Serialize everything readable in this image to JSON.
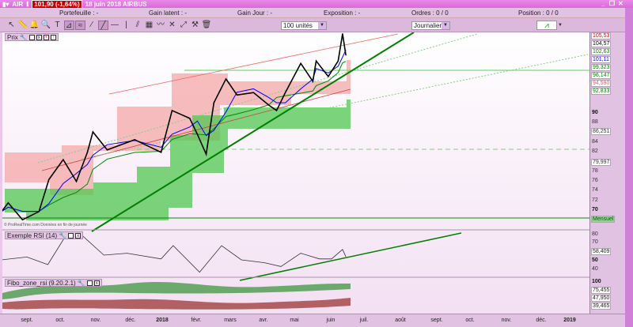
{
  "titlebar": {
    "symbol": "AIR",
    "price_change": "101,90 (-1,64%)",
    "date_name": "18 juin 2018 AIRBUS"
  },
  "infobar": {
    "portefeuille": "Portefeuille : -",
    "gain_latent": "Gain latent : -",
    "gain_jour": "Gain Jour : -",
    "exposition": "Exposition : -",
    "ordres": "Ordres : 0 / 0",
    "position": "Position : 0 / 0"
  },
  "toolbar": {
    "quantity": "100 unités",
    "period": "Journalier",
    "tools": [
      "pointer-icon",
      "ruler-icon",
      "bell-icon",
      "magnifier-icon",
      "text-icon",
      "fan-icon",
      "channel-icon",
      "segment-icon",
      "line-icon",
      "horizontal-line-icon",
      "vertical-line-icon",
      "parallel-icon",
      "fibo-icon",
      "wave-icon",
      "cross-icon",
      "trend-icon",
      "tools-icon",
      "trash-icon"
    ]
  },
  "panels": {
    "price": "Prix",
    "rsi": "Exemple RSI (14)",
    "fibo": "Fibo_zone_rsi (9.20.2.1)"
  },
  "watermark": "© ProRealTime.com Données en fin de journée",
  "colors": {
    "price": "#000000",
    "ma_fast": "#0000ff",
    "ma_mid": "#008800",
    "band_upper": "#f4a0a0",
    "cloud": "#40c040",
    "trendline": "#008000"
  },
  "price_axis": {
    "ticks": [
      "90",
      "88",
      "84",
      "82",
      "78",
      "76",
      "74",
      "72",
      "70"
    ],
    "labels": [
      {
        "v": "105,53",
        "c": "#e00000"
      },
      {
        "v": "104,57",
        "c": "#000"
      },
      {
        "v": "102,63",
        "c": "#008800"
      },
      {
        "v": "101,11",
        "c": "#0000ff"
      },
      {
        "v": "99,323",
        "c": "#008800"
      },
      {
        "v": "96,147",
        "c": "#008800"
      },
      {
        "v": "94,590",
        "c": "#e06060"
      },
      {
        "v": "92,833",
        "c": "#008800"
      },
      {
        "v": "86,251",
        "c": "#333"
      },
      {
        "v": "79,997",
        "c": "#333"
      }
    ],
    "mensuel": "Mensuel"
  },
  "rsi_axis": {
    "ticks": [
      "80",
      "70",
      "50",
      "40"
    ],
    "label": "58,409"
  },
  "fibo_axis": {
    "top": "100",
    "labels": [
      "75,455",
      "47,950",
      "39,465"
    ]
  },
  "x_axis": [
    "sept.",
    "oct.",
    "nov.",
    "déc.",
    "2018",
    "févr.",
    "mars",
    "avr.",
    "mai",
    "juin",
    "juil.",
    "août",
    "sept.",
    "oct.",
    "nov.",
    "déc.",
    "2019"
  ],
  "chart_data": {
    "type": "line",
    "symbol": "AIRBUS",
    "x": [
      "2017-08-09",
      "2017-08-15",
      "2017-08-28",
      "2017-09-12",
      "2017-09-21",
      "2017-10-04",
      "2017-10-16",
      "2017-10-26",
      "2017-10-31",
      "2017-11-13",
      "2017-12-08",
      "2018-01-01",
      "2018-01-11",
      "2018-01-27",
      "2018-02-03",
      "2018-02-11",
      "2018-02-18",
      "2018-03-01",
      "2018-03-11",
      "2018-03-26",
      "2018-04-09",
      "2018-04-16",
      "2018-04-24",
      "2018-05-08",
      "2018-05-19",
      "2018-05-22",
      "2018-06-02",
      "2018-06-11",
      "2018-06-15",
      "2018-06-18"
    ],
    "series": [
      {
        "values": [
          69.7,
          71.5,
          68,
          69.7,
          76.3,
          80.4,
          75.9,
          81.9,
          86.1,
          82.4,
          84.5,
          81.9,
          90.5,
          88.9,
          85.6,
          81.5,
          92.1,
          97,
          93.7,
          94.2,
          91.6,
          90.5,
          94.2,
          100.2,
          96.5,
          100.7,
          97.5,
          100.7,
          106.3,
          101.9
        ]
      }
    ],
    "rsi": {
      "x": [
        "2017-08-09",
        "2017-09-01",
        "2017-09-20",
        "2017-10-05",
        "2017-10-20",
        "2017-11-10",
        "2017-12-01",
        "2018-01-01",
        "2018-01-12",
        "2018-02-05",
        "2018-02-25",
        "2018-03-15",
        "2018-04-05",
        "2018-04-20",
        "2018-05-08",
        "2018-05-25",
        "2018-06-05",
        "2018-06-15",
        "2018-06-18"
      ],
      "values": [
        55,
        58,
        50,
        78,
        82,
        60,
        62,
        56,
        70,
        42,
        70,
        55,
        52,
        48,
        62,
        56,
        56,
        66,
        58.4
      ]
    },
    "ylim_price": [
      66,
      107
    ],
    "ylim_rsi": [
      35,
      85
    ]
  }
}
